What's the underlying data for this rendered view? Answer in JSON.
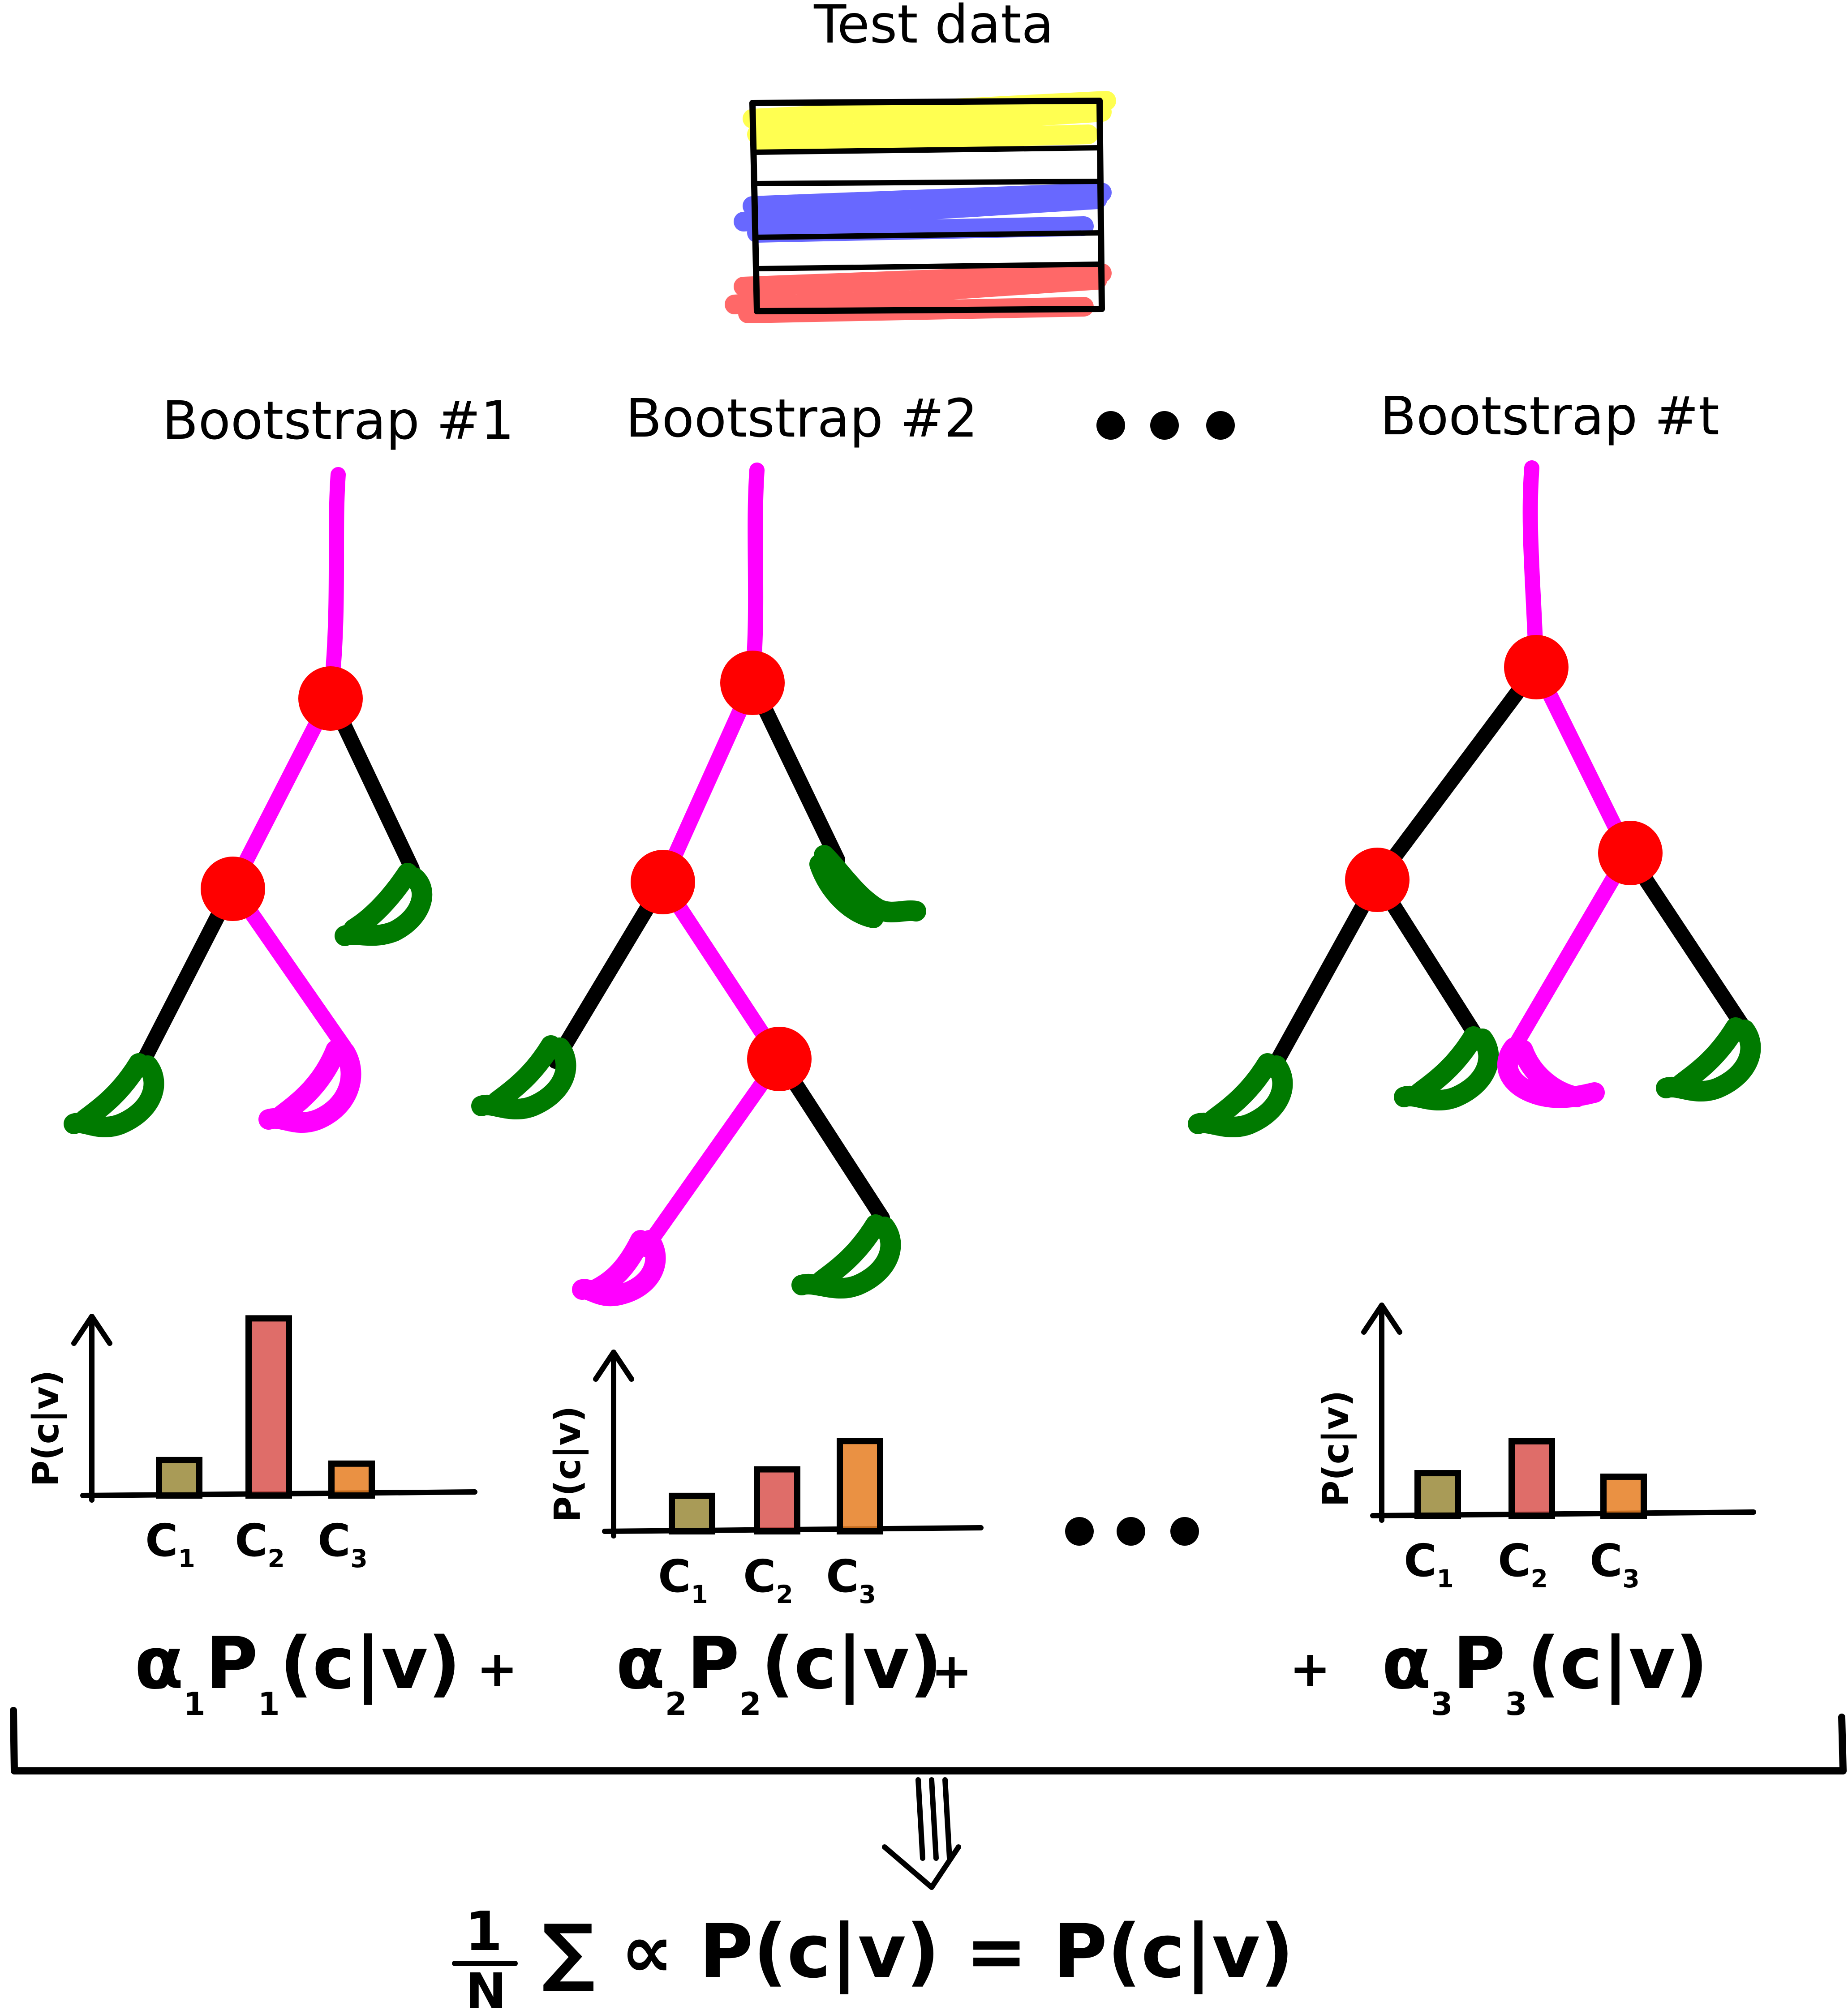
{
  "test_data": {
    "title": "Test data",
    "rows": [
      {
        "color": "#ffff33"
      },
      {
        "color": "#4d4dff"
      },
      {
        "color": "#ff4d4d"
      }
    ]
  },
  "bootstraps": [
    {
      "label": "Bootstrap #1"
    },
    {
      "label": "Bootstrap #2"
    },
    {
      "label": "Bootstrap #t"
    }
  ],
  "ellipsis": "• • •",
  "colors": {
    "path": "#ff00ff",
    "branch": "#000000",
    "node": "#ff0000",
    "leaf": "#007a00",
    "bar_c1": "#9a8a3a",
    "bar_c2": "#d9534f",
    "bar_c3": "#e67e22"
  },
  "chart_data": [
    {
      "type": "bar",
      "ylabel": "P(c|v)",
      "categories": [
        "C1",
        "C2",
        "C3"
      ],
      "category_labels": [
        {
          "base": "C",
          "sub": "1"
        },
        {
          "base": "C",
          "sub": "2"
        },
        {
          "base": "C",
          "sub": "3"
        }
      ],
      "values": [
        0.2,
        1.0,
        0.18
      ],
      "ylim": [
        0,
        1.15
      ]
    },
    {
      "type": "bar",
      "ylabel": "P(c|v)",
      "categories": [
        "C1",
        "C2",
        "C3"
      ],
      "category_labels": [
        {
          "base": "C",
          "sub": "1"
        },
        {
          "base": "C",
          "sub": "2"
        },
        {
          "base": "C",
          "sub": "3"
        }
      ],
      "values": [
        0.2,
        0.35,
        0.51
      ],
      "ylim": [
        0,
        1.15
      ]
    },
    {
      "type": "bar",
      "ylabel": "P(c|v)",
      "categories": [
        "C1",
        "C2",
        "C3"
      ],
      "category_labels": [
        {
          "base": "C",
          "sub": "1"
        },
        {
          "base": "C",
          "sub": "2"
        },
        {
          "base": "C",
          "sub": "3"
        }
      ],
      "values": [
        0.24,
        0.42,
        0.22
      ],
      "ylim": [
        0,
        1.15
      ]
    }
  ],
  "terms": [
    {
      "alpha": "α",
      "alpha_sub": "1",
      "p": "P",
      "p_sub": "1",
      "arg": "(c|v)"
    },
    {
      "alpha": "α",
      "alpha_sub": "2",
      "p": "P",
      "p_sub": "2",
      "arg": "(c|v)"
    },
    {
      "alpha": "α",
      "alpha_sub": "3",
      "p": "P",
      "p_sub": "3",
      "arg": "(c|v)"
    }
  ],
  "plus": "+",
  "implies": "⇓",
  "formula": {
    "numerator": "1",
    "denominator": "N",
    "body": "∑ ∝ P(c|v) = P(c|v)"
  }
}
